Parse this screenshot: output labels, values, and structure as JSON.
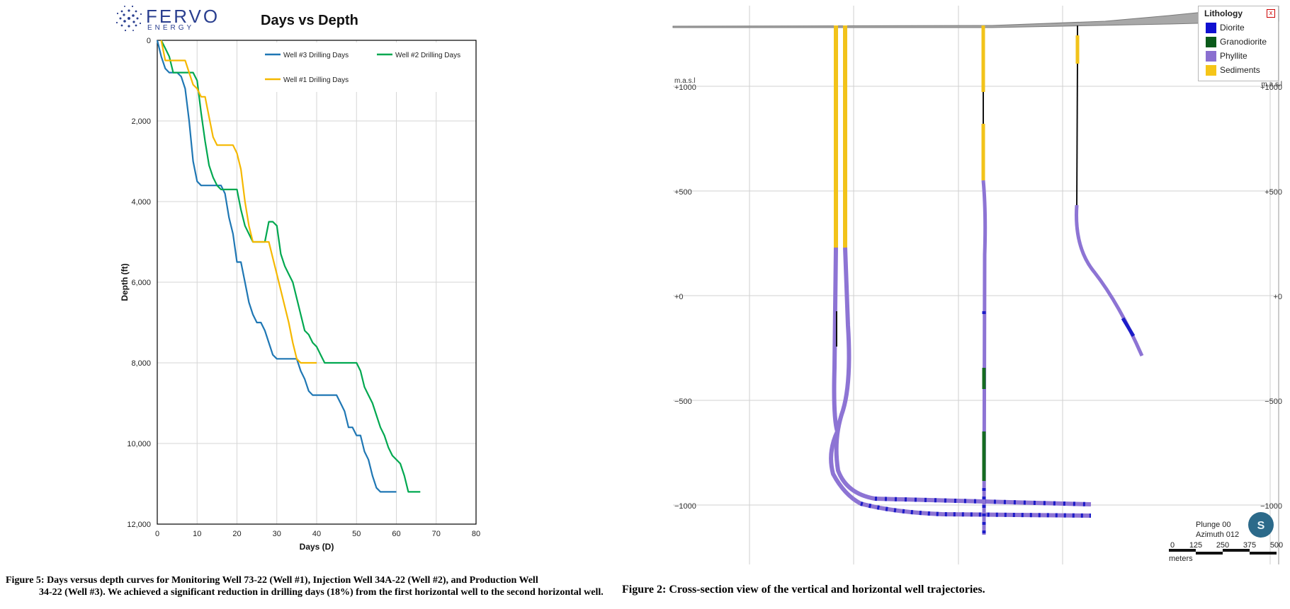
{
  "logo": {
    "word": "FERVO",
    "sub": "ENERGY"
  },
  "chart_data": [
    {
      "type": "line",
      "title": "Days vs Depth",
      "xlabel": "Days (D)",
      "ylabel": "Depth (ft)",
      "xlim": [
        0,
        80
      ],
      "ylim": [
        0,
        12000
      ],
      "y_inverted": true,
      "xticks": [
        "0",
        "10",
        "20",
        "30",
        "40",
        "50",
        "60",
        "70",
        "80"
      ],
      "yticks": [
        "0",
        "2,000",
        "4,000",
        "6,000",
        "8,000",
        "10,000",
        "12,000"
      ],
      "grid": true,
      "legend_position": "top-right",
      "series": [
        {
          "name": "Well #3 Drilling Days",
          "color": "#1f77b4",
          "points": [
            [
              0,
              0
            ],
            [
              0.5,
              200
            ],
            [
              1,
              400
            ],
            [
              2,
              700
            ],
            [
              3,
              800
            ],
            [
              5,
              800
            ],
            [
              6,
              900
            ],
            [
              7,
              1200
            ],
            [
              8,
              2000
            ],
            [
              9,
              3000
            ],
            [
              10,
              3500
            ],
            [
              11,
              3600
            ],
            [
              16,
              3600
            ],
            [
              17,
              3800
            ],
            [
              18,
              4400
            ],
            [
              19,
              4800
            ],
            [
              20,
              5500
            ],
            [
              21,
              5500
            ],
            [
              22,
              6000
            ],
            [
              23,
              6500
            ],
            [
              24,
              6800
            ],
            [
              25,
              7000
            ],
            [
              26,
              7000
            ],
            [
              27,
              7200
            ],
            [
              28,
              7500
            ],
            [
              29,
              7800
            ],
            [
              30,
              7900
            ],
            [
              35,
              7900
            ],
            [
              36,
              8200
            ],
            [
              37,
              8400
            ],
            [
              38,
              8700
            ],
            [
              39,
              8800
            ],
            [
              45,
              8800
            ],
            [
              46,
              9000
            ],
            [
              47,
              9200
            ],
            [
              48,
              9600
            ],
            [
              49,
              9600
            ],
            [
              50,
              9800
            ],
            [
              51,
              9800
            ],
            [
              52,
              10200
            ],
            [
              53,
              10400
            ],
            [
              54,
              10800
            ],
            [
              55,
              11100
            ],
            [
              56,
              11200
            ],
            [
              60,
              11200
            ]
          ]
        },
        {
          "name": "Well #2 Drilling Days",
          "color": "#00a850",
          "points": [
            [
              1,
              0
            ],
            [
              2,
              200
            ],
            [
              3,
              400
            ],
            [
              4,
              800
            ],
            [
              9,
              800
            ],
            [
              10,
              1000
            ],
            [
              11,
              1800
            ],
            [
              12,
              2500
            ],
            [
              13,
              3100
            ],
            [
              14,
              3400
            ],
            [
              15,
              3600
            ],
            [
              16,
              3700
            ],
            [
              20,
              3700
            ],
            [
              21,
              4200
            ],
            [
              22,
              4600
            ],
            [
              23,
              4800
            ],
            [
              24,
              5000
            ],
            [
              27,
              5000
            ],
            [
              28,
              4500
            ],
            [
              29,
              4500
            ],
            [
              30,
              4600
            ],
            [
              31,
              5300
            ],
            [
              32,
              5600
            ],
            [
              33,
              5800
            ],
            [
              34,
              6000
            ],
            [
              35,
              6400
            ],
            [
              36,
              6800
            ],
            [
              37,
              7200
            ],
            [
              38,
              7300
            ],
            [
              39,
              7500
            ],
            [
              40,
              7600
            ],
            [
              41,
              7800
            ],
            [
              42,
              8000
            ],
            [
              50,
              8000
            ],
            [
              51,
              8200
            ],
            [
              52,
              8600
            ],
            [
              53,
              8800
            ],
            [
              54,
              9000
            ],
            [
              55,
              9300
            ],
            [
              56,
              9600
            ],
            [
              57,
              9800
            ],
            [
              58,
              10100
            ],
            [
              59,
              10300
            ],
            [
              61,
              10500
            ],
            [
              62,
              10800
            ],
            [
              63,
              11200
            ],
            [
              66,
              11200
            ]
          ]
        },
        {
          "name": "Well #1 Drilling Days",
          "color": "#f5b800",
          "points": [
            [
              1,
              0
            ],
            [
              2,
              500
            ],
            [
              7,
              500
            ],
            [
              8,
              800
            ],
            [
              9,
              1100
            ],
            [
              10,
              1200
            ],
            [
              11,
              1400
            ],
            [
              12,
              1400
            ],
            [
              13,
              1900
            ],
            [
              14,
              2400
            ],
            [
              15,
              2600
            ],
            [
              19,
              2600
            ],
            [
              20,
              2800
            ],
            [
              21,
              3200
            ],
            [
              22,
              4000
            ],
            [
              23,
              4600
            ],
            [
              24,
              5000
            ],
            [
              27,
              5000
            ],
            [
              28,
              5000
            ],
            [
              29,
              5400
            ],
            [
              30,
              5800
            ],
            [
              31,
              6200
            ],
            [
              32,
              6600
            ],
            [
              33,
              7000
            ],
            [
              34,
              7500
            ],
            [
              35,
              7900
            ],
            [
              36,
              8000
            ],
            [
              40,
              8000
            ]
          ]
        }
      ]
    },
    {
      "type": "line",
      "title": "",
      "xlabel": "",
      "ylabel": "m.a.s.l",
      "ylim": [
        -1300,
        1300
      ],
      "yticks": [
        "+1000",
        "+500",
        "+0",
        "−500",
        "−1000"
      ],
      "grid": true,
      "legend_position": "top-right",
      "legend_title": "Lithology",
      "legend": [
        {
          "name": "Diorite",
          "color": "#1010d0"
        },
        {
          "name": "Granodiorite",
          "color": "#0a5a1a"
        },
        {
          "name": "Phyllite",
          "color": "#8a6fd0"
        },
        {
          "name": "Sediments",
          "color": "#f5c518"
        }
      ],
      "view": {
        "plunge": "Plunge 00",
        "azimuth": "Azimuth 012",
        "badge": "S"
      },
      "scale_bar": {
        "ticks": [
          "0",
          "125",
          "250",
          "375",
          "500"
        ],
        "unit": "meters"
      }
    }
  ],
  "captions": {
    "left_lead": "Figure 5: Days versus depth curves for Monitoring Well 73-22 (Well #1), Injection Well 34A-22 (Well #2), and Production Well",
    "left_rest": "34-22 (Well #3). We achieved a significant reduction in drilling days (18%) from the first horizontal well to the second horizontal well.",
    "right": "Figure 2: Cross-section view of the vertical and horizontal well trajectories."
  }
}
